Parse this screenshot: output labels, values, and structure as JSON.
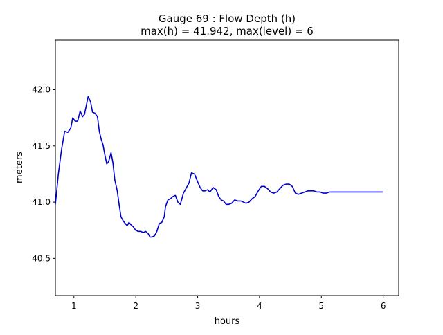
{
  "chart_data": {
    "type": "line",
    "title_line1": "Gauge 69 : Flow Depth (h)",
    "title_line2": "max(h) =  41.942,    max(level) = 6",
    "xlabel": "hours",
    "ylabel": "meters",
    "xlim": [
      0.7,
      6.25
    ],
    "ylim": [
      40.17,
      42.44
    ],
    "xticks": [
      1,
      2,
      3,
      4,
      5,
      6
    ],
    "xtick_labels": [
      "1",
      "2",
      "3",
      "4",
      "5",
      "6"
    ],
    "yticks": [
      40.5,
      41.0,
      41.5,
      42.0
    ],
    "ytick_labels": [
      "40.5",
      "41.0",
      "41.5",
      "42.0"
    ],
    "grid": false,
    "series": [
      {
        "color": "#0000cc",
        "x": [
          0.7,
          0.75,
          0.8,
          0.85,
          0.9,
          0.95,
          0.98,
          1.02,
          1.06,
          1.1,
          1.14,
          1.17,
          1.2,
          1.23,
          1.27,
          1.3,
          1.34,
          1.38,
          1.41,
          1.44,
          1.47,
          1.5,
          1.53,
          1.56,
          1.6,
          1.63,
          1.66,
          1.7,
          1.73,
          1.76,
          1.8,
          1.83,
          1.86,
          1.89,
          1.92,
          1.96,
          2.0,
          2.04,
          2.08,
          2.12,
          2.16,
          2.2,
          2.23,
          2.26,
          2.3,
          2.34,
          2.38,
          2.42,
          2.46,
          2.48,
          2.52,
          2.56,
          2.6,
          2.64,
          2.68,
          2.72,
          2.77,
          2.82,
          2.86,
          2.9,
          2.95,
          3.0,
          3.04,
          3.08,
          3.12,
          3.16,
          3.2,
          3.25,
          3.3,
          3.34,
          3.38,
          3.42,
          3.46,
          3.5,
          3.55,
          3.6,
          3.65,
          3.7,
          3.74,
          3.78,
          3.83,
          3.88,
          3.93,
          3.98,
          4.03,
          4.08,
          4.13,
          4.18,
          4.23,
          4.28,
          4.33,
          4.38,
          4.43,
          4.48,
          4.53,
          4.58,
          4.63,
          4.68,
          4.73,
          4.78,
          4.83,
          4.88,
          4.93,
          4.98,
          5.03,
          5.08,
          5.13,
          5.18,
          5.23,
          5.28,
          5.33,
          5.38,
          5.43,
          5.48,
          5.53,
          5.58,
          5.63,
          5.68,
          5.73,
          5.78,
          5.83,
          5.88,
          5.93,
          5.98,
          6.0
        ],
        "y": [
          40.98,
          41.26,
          41.47,
          41.63,
          41.62,
          41.66,
          41.75,
          41.72,
          41.72,
          41.81,
          41.76,
          41.78,
          41.86,
          41.94,
          41.89,
          41.8,
          41.79,
          41.76,
          41.63,
          41.56,
          41.51,
          41.42,
          41.34,
          41.36,
          41.44,
          41.35,
          41.2,
          41.1,
          40.98,
          40.87,
          40.83,
          40.81,
          40.79,
          40.82,
          40.8,
          40.78,
          40.75,
          40.74,
          40.74,
          40.73,
          40.74,
          40.72,
          40.69,
          40.69,
          40.7,
          40.74,
          40.81,
          40.82,
          40.87,
          40.96,
          41.02,
          41.03,
          41.05,
          41.06,
          41.0,
          40.98,
          41.08,
          41.13,
          41.17,
          41.26,
          41.25,
          41.18,
          41.13,
          41.1,
          41.1,
          41.11,
          41.09,
          41.13,
          41.11,
          41.05,
          41.02,
          41.01,
          40.98,
          40.98,
          40.99,
          41.02,
          41.01,
          41.01,
          41.0,
          40.99,
          41.0,
          41.03,
          41.05,
          41.1,
          41.14,
          41.14,
          41.12,
          41.09,
          41.08,
          41.09,
          41.12,
          41.15,
          41.16,
          41.16,
          41.14,
          41.08,
          41.07,
          41.08,
          41.09,
          41.1,
          41.1,
          41.1,
          41.09,
          41.09,
          41.08,
          41.08,
          41.09,
          41.09,
          41.09,
          41.09,
          41.09,
          41.09,
          41.09,
          41.09,
          41.09,
          41.09,
          41.09,
          41.09,
          41.09,
          41.09,
          41.09,
          41.09,
          41.09,
          41.09,
          41.09
        ]
      }
    ]
  }
}
